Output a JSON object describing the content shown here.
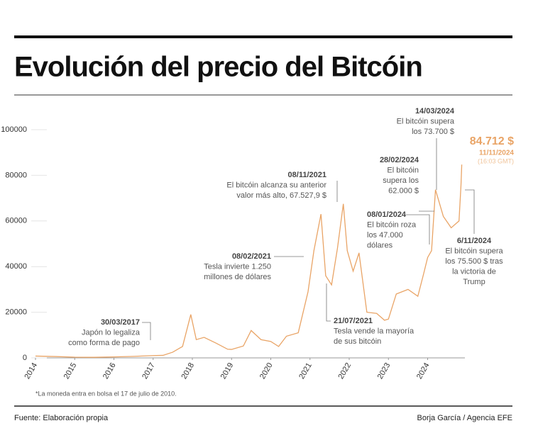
{
  "chart_data": {
    "type": "line",
    "title": "Evolución del precio del Bitcóin",
    "x": [
      2014.0,
      2014.5,
      2015.0,
      2015.5,
      2016.0,
      2016.5,
      2017.0,
      2017.25,
      2017.5,
      2017.75,
      2017.96,
      2018.1,
      2018.3,
      2018.6,
      2018.9,
      2019.0,
      2019.3,
      2019.5,
      2019.75,
      2020.0,
      2020.2,
      2020.4,
      2020.7,
      2020.95,
      2021.1,
      2021.28,
      2021.4,
      2021.55,
      2021.7,
      2021.85,
      2021.95,
      2022.1,
      2022.25,
      2022.45,
      2022.7,
      2022.9,
      2023.0,
      2023.2,
      2023.5,
      2023.75,
      2023.9,
      2024.0,
      2024.1,
      2024.2,
      2024.4,
      2024.6,
      2024.8,
      2024.85,
      2024.87
    ],
    "series": [
      {
        "name": "Bitcóin",
        "color": "#e9a466",
        "values": [
          800,
          600,
          300,
          250,
          430,
          650,
          1000,
          1100,
          2500,
          5000,
          19000,
          8000,
          9000,
          6500,
          3800,
          3700,
          5200,
          12000,
          8000,
          7200,
          5000,
          9500,
          11000,
          29000,
          47000,
          63000,
          36000,
          32000,
          48000,
          67500,
          47000,
          38000,
          46000,
          20000,
          19500,
          16500,
          17000,
          28000,
          30000,
          27000,
          37000,
          44000,
          47000,
          73700,
          62000,
          57000,
          60000,
          75500,
          84712
        ]
      }
    ],
    "xlim": [
      2014,
      2024.95
    ],
    "xticks": [
      2014,
      2015,
      2016,
      2017,
      2018,
      2019,
      2020,
      2021,
      2022,
      2023,
      2024
    ],
    "ylim": [
      0,
      100000
    ],
    "yticks": [
      0,
      20000,
      40000,
      60000,
      80000,
      100000
    ],
    "grid": false,
    "annotations": [
      {
        "date": "30/03/2017",
        "lines": [
          "Japón lo legaliza",
          "como forma de pago"
        ]
      },
      {
        "date": "08/02/2021",
        "lines": [
          "Tesla invierte 1.250",
          "millones de dólares"
        ]
      },
      {
        "date": "08/11/2021",
        "lines": [
          "El bitcóin alcanza su anterior",
          "valor más alto, 67.527,9 $"
        ]
      },
      {
        "date": "21/07/2021",
        "lines": [
          "Tesla vende la mayoría",
          "de sus bitcóin"
        ]
      },
      {
        "date": "08/01/2024",
        "lines": [
          "El bitcóin roza",
          "los 47.000",
          "dólares"
        ]
      },
      {
        "date": "28/02/2024",
        "lines": [
          "El bitcóin",
          "supera los",
          "62.000 $"
        ]
      },
      {
        "date": "14/03/2024",
        "lines": [
          "El bitcóin supera",
          "los 73.700 $"
        ]
      },
      {
        "date": "6/11/2024",
        "lines": [
          "El bitcóin supera",
          "los 75.500 $ tras",
          "la victoria de",
          "Trump"
        ]
      }
    ],
    "highlight": {
      "value": "84.712 $",
      "date": "11/11/2024",
      "time": "(16:03 GMT)"
    },
    "note": "*La moneda entra en bolsa el 17 de julio de 2010."
  },
  "footer": {
    "source": "Fuente: Elaboración propia",
    "credit": "Borja García / Agencia EFE"
  }
}
